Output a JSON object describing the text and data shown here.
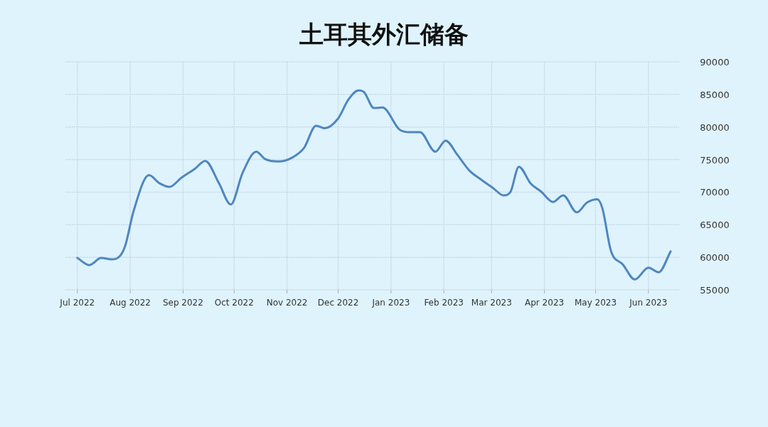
{
  "chart_data": {
    "type": "line",
    "title": "土耳其外汇储备",
    "x": [
      "2022-07-01",
      "2022-07-08",
      "2022-07-15",
      "2022-07-21",
      "2022-07-26",
      "2022-07-29",
      "2022-08-03",
      "2022-08-12",
      "2022-08-18",
      "2022-08-24",
      "2022-08-31",
      "2022-09-08",
      "2022-09-14",
      "2022-09-22",
      "2022-09-29",
      "2022-10-06",
      "2022-10-14",
      "2022-10-19",
      "2022-10-27",
      "2022-11-04",
      "2022-11-11",
      "2022-11-18",
      "2022-11-23",
      "2022-12-01",
      "2022-12-07",
      "2022-12-13",
      "2022-12-16",
      "2022-12-22",
      "2022-12-27",
      "2023-01-06",
      "2023-01-12",
      "2023-01-18",
      "2023-01-27",
      "2023-02-02",
      "2023-02-09",
      "2023-02-16",
      "2023-02-23",
      "2023-03-02",
      "2023-03-08",
      "2023-03-12",
      "2023-03-17",
      "2023-03-24",
      "2023-03-30",
      "2023-04-06",
      "2023-04-12",
      "2023-04-20",
      "2023-04-26",
      "2023-05-02",
      "2023-05-05",
      "2023-05-10",
      "2023-05-17",
      "2023-05-24",
      "2023-06-01",
      "2023-06-07",
      "2023-06-14"
    ],
    "series": [
      {
        "color": "#4f86bf",
        "values": [
          59900,
          58800,
          59900,
          59700,
          60200,
          61700,
          67100,
          72600,
          71400,
          70800,
          72200,
          73600,
          74800,
          71400,
          68100,
          73000,
          76200,
          75100,
          74700,
          75300,
          76800,
          80200,
          79800,
          81300,
          84200,
          85600,
          85400,
          82900,
          83000,
          79600,
          79200,
          79200,
          76200,
          77900,
          75700,
          73300,
          71900,
          70600,
          69500,
          70000,
          73900,
          71300,
          70100,
          68500,
          69500,
          66900,
          68400,
          68900,
          67500,
          61000,
          58900,
          56600,
          58400,
          57700,
          60900
        ]
      }
    ],
    "xlim": [
      "2022-06-24",
      "2023-06-19"
    ],
    "xticks": [
      {
        "value": "2022-07",
        "label": "Jul 2022"
      },
      {
        "value": "2022-08",
        "label": "Aug 2022"
      },
      {
        "value": "2022-09",
        "label": "Sep 2022"
      },
      {
        "value": "2022-10",
        "label": "Oct 2022"
      },
      {
        "value": "2022-11",
        "label": "Nov 2022"
      },
      {
        "value": "2022-12",
        "label": "Dec 2022"
      },
      {
        "value": "2023-01",
        "label": "Jan 2023"
      },
      {
        "value": "2023-02",
        "label": "Feb 2023"
      },
      {
        "value": "2023-03",
        "label": "Mar 2023"
      },
      {
        "value": "2023-04",
        "label": "Apr 2023"
      },
      {
        "value": "2023-05",
        "label": "May 2023"
      },
      {
        "value": "2023-06",
        "label": "Jun 2023"
      }
    ],
    "ylim": [
      55000,
      90000
    ],
    "yticks": [
      55000,
      60000,
      65000,
      70000,
      75000,
      80000,
      85000,
      90000
    ],
    "grid": true
  }
}
